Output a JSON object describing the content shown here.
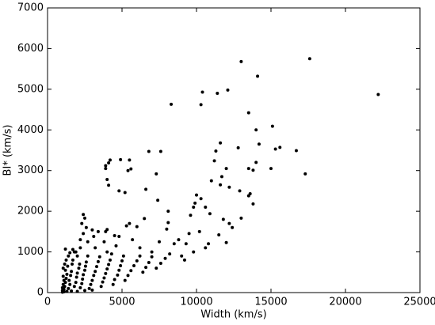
{
  "chart_data": {
    "type": "scatter",
    "xlabel": "Width (km/s)",
    "ylabel": "BI* (km/s)",
    "color": "#000000",
    "xlim": [
      0,
      25000
    ],
    "ylim": [
      0,
      7000
    ],
    "xticks": [
      0,
      5000,
      10000,
      15000,
      20000,
      25000
    ],
    "yticks": [
      0,
      1000,
      2000,
      3000,
      4000,
      5000,
      6000,
      7000
    ],
    "x": [
      22200,
      17600,
      13000,
      14100,
      12100,
      11400,
      10400,
      10300,
      8300,
      15100,
      13500,
      14000,
      14200,
      11600,
      11300,
      11200,
      12800,
      15300,
      15600,
      16700,
      17300,
      15000,
      13500,
      13800,
      14000,
      12000,
      11700,
      11000,
      12200,
      12900,
      13600,
      13500,
      13800,
      11600,
      10300,
      10000,
      9900,
      10600,
      9800,
      9600,
      10900,
      11800,
      12200,
      13000,
      12400,
      11500,
      12000,
      10200,
      10800,
      10600,
      9800,
      9500,
      9300,
      9000,
      8500,
      8100,
      8100,
      8000,
      7500,
      7400,
      7600,
      6800,
      7300,
      6600,
      5500,
      5600,
      5400,
      4900,
      4200,
      4100,
      3900,
      3900,
      4000,
      4100,
      4800,
      5200,
      6500,
      6000,
      5500,
      5300,
      4800,
      4500,
      4000,
      3900,
      3400,
      3000,
      3100,
      2400,
      2500,
      2300,
      2600,
      2400,
      2200,
      1700,
      1500,
      1200,
      1800,
      2000,
      1000,
      1000,
      1050,
      1100,
      1050,
      1100,
      1150,
      1200,
      1250,
      1300,
      1200,
      1350,
      1400,
      1500,
      1450,
      1550,
      1600,
      1650,
      1700,
      1800,
      1900,
      1950,
      2000,
      2100,
      2150,
      2200,
      2300,
      2350,
      2400,
      2500,
      2550,
      2600,
      2700,
      2800,
      2900,
      3000,
      3100,
      3200,
      3300,
      3400,
      3500,
      3600,
      3700,
      3800,
      3900,
      4000,
      4100,
      4200,
      4300,
      4400,
      4500,
      4700,
      4800,
      4900,
      5000,
      5100,
      5200,
      5400,
      5600,
      5800,
      6000,
      6200,
      6400,
      6600,
      6800,
      7000,
      7300,
      7600,
      7900,
      8200,
      1000,
      1100,
      1300,
      1600,
      2000,
      2500,
      3000,
      1050,
      1150,
      1250,
      1400,
      1900,
      3200,
      3800,
      4600,
      5700,
      6200,
      7000,
      8800,
      9200,
      2200,
      2700,
      4000
    ],
    "values": [
      4870,
      5750,
      5680,
      5320,
      4980,
      4900,
      4930,
      4620,
      4630,
      4090,
      4420,
      4000,
      3650,
      3680,
      3480,
      3240,
      3560,
      3530,
      3570,
      3490,
      2920,
      3050,
      3050,
      3010,
      3200,
      3050,
      2850,
      2750,
      2590,
      2500,
      2430,
      2380,
      2180,
      2650,
      2310,
      2400,
      2200,
      2100,
      2100,
      1900,
      1940,
      1800,
      1700,
      1830,
      1600,
      1420,
      1230,
      1500,
      1200,
      1100,
      1000,
      1450,
      1200,
      900,
      1200,
      1720,
      2000,
      1560,
      1250,
      2270,
      3470,
      3470,
      2920,
      2540,
      3260,
      3040,
      3000,
      3270,
      3260,
      3190,
      3050,
      3120,
      2780,
      2640,
      2500,
      2460,
      1820,
      1620,
      1700,
      1640,
      1380,
      1400,
      1550,
      1500,
      1500,
      1540,
      1380,
      1920,
      1830,
      1700,
      1600,
      1450,
      1300,
      1060,
      980,
      1070,
      1000,
      900,
      50,
      120,
      200,
      300,
      400,
      80,
      150,
      250,
      350,
      450,
      550,
      650,
      100,
      200,
      300,
      420,
      520,
      700,
      800,
      150,
      250,
      380,
      480,
      600,
      700,
      120,
      220,
      330,
      440,
      550,
      650,
      750,
      900,
      100,
      200,
      300,
      420,
      520,
      640,
      760,
      880,
      150,
      260,
      360,
      470,
      580,
      690,
      800,
      950,
      200,
      320,
      430,
      550,
      660,
      780,
      900,
      300,
      420,
      540,
      660,
      780,
      900,
      500,
      620,
      740,
      880,
      600,
      720,
      840,
      950,
      10,
      20,
      30,
      40,
      30,
      50,
      60,
      600,
      700,
      800,
      900,
      1000,
      1100,
      1250,
      1150,
      1300,
      1100,
      1000,
      1300,
      800,
      1100,
      1250,
      1000
    ]
  }
}
